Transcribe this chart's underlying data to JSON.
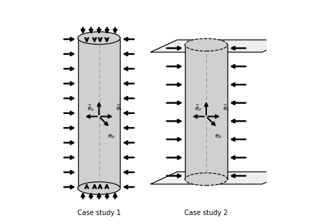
{
  "case1_label": "Case study 1",
  "case2_label": "Case study 2",
  "background_color": "#ffffff",
  "cylinder_fill": "#d0d0d0",
  "cylinder_edge": "#000000",
  "arrow_color": "#000000",
  "dashed_color": "#999999"
}
